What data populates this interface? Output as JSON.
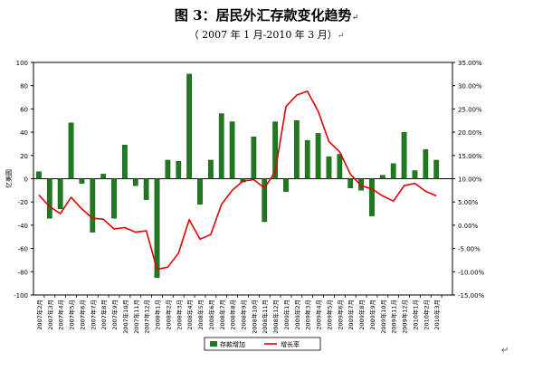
{
  "header": {
    "title": "图 3：居民外汇存款变化趋势",
    "subtitle": "（ 2007 年 1 月-2010 年 3 月）",
    "para_mark": "↵"
  },
  "chart_data": {
    "type": "bar+line",
    "title": "图 3：居民外汇存款变化趋势",
    "subtitle": "（ 2007 年 1 月-2010 年 3 月）",
    "ylabel": "亿美圆",
    "y2label": "",
    "ylim": [
      -100,
      100
    ],
    "y2lim": [
      -15,
      35
    ],
    "yticks": [
      -100,
      -80,
      -60,
      -40,
      -20,
      0,
      20,
      40,
      60,
      80,
      100
    ],
    "y2ticks": [
      "-15.00%",
      "-10.00%",
      "-5.00%",
      "0.00%",
      "5.00%",
      "10.00%",
      "15.00%",
      "20.00%",
      "25.00%",
      "30.00%",
      "35.00%"
    ],
    "y2tick_values": [
      -15,
      -10,
      -5,
      0,
      5,
      10,
      15,
      20,
      25,
      30,
      35
    ],
    "categories": [
      "2007年1月",
      "2007年2月",
      "2007年3月",
      "2007年4月",
      "2007年5月",
      "2007年6月",
      "2007年7月",
      "2007年8月",
      "2007年9月",
      "2007年10月",
      "2007年11月",
      "2007年12月",
      "2008年1月",
      "2008年2月",
      "2008年3月",
      "2008年4月",
      "2008年5月",
      "2008年6月",
      "2008年7月",
      "2008年8月",
      "2008年9月",
      "2008年10月",
      "2008年11月",
      "2008年12月",
      "2009年1月",
      "2009年2月",
      "2009年3月",
      "2009年4月",
      "2009年5月",
      "2009年6月",
      "2009年7月",
      "2009年8月",
      "2009年9月",
      "2009年10月",
      "2009年11月",
      "2009年12月",
      "2010年1月",
      "2010年2月",
      "2010年3月"
    ],
    "tick_labels": [
      "2007年2月",
      "2007年3月",
      "2007年4月",
      "2007年5月",
      "2007年6月",
      "2007年7月",
      "2007年8月",
      "2007年9月",
      "2007年10月",
      "2007年11月",
      "2007年12月",
      "2008年1月",
      "2008年2月",
      "2008年3月",
      "2008年4月",
      "2008年5月",
      "2008年6月",
      "2008年7月",
      "2008年8月",
      "2008年9月",
      "2008年10月",
      "2008年11月",
      "2008年12月",
      "2009年1月",
      "2009年2月",
      "2009年3月",
      "2009年4月",
      "2009年5月",
      "2009年6月",
      "2009年7月",
      "2009年8月",
      "2009年9月",
      "2009年10月",
      "2009年11月",
      "2009年12月",
      "2010年1月",
      "2010年2月",
      "2010年3月"
    ],
    "series": [
      {
        "name": "存款增加",
        "type": "bar",
        "axis": "left",
        "color": "#1f7a1f",
        "values": [
          6,
          -34,
          -26,
          48,
          -4,
          -46,
          4,
          -34,
          29,
          -6,
          -18,
          -85,
          16,
          15,
          90,
          -22,
          16,
          56,
          49,
          -3,
          36,
          -37,
          49,
          -11,
          50,
          33,
          39,
          19,
          21,
          -8,
          -10,
          -32,
          3,
          13,
          40,
          7,
          25,
          16,
          null
        ]
      },
      {
        "name": "增长率",
        "type": "line",
        "axis": "right",
        "color": "#e00000",
        "values": [
          6.5,
          4.0,
          2.5,
          6.0,
          3.5,
          1.5,
          1.3,
          -0.8,
          -0.5,
          -1.5,
          -1.2,
          -9.5,
          -9.0,
          -6.0,
          1.2,
          -3.0,
          -2.0,
          4.5,
          7.5,
          9.5,
          9.8,
          8.0,
          11.5,
          25.5,
          28.0,
          28.8,
          24.5,
          18.0,
          15.8,
          11.0,
          8.5,
          7.8,
          6.3,
          5.2,
          8.5,
          9.0,
          7.3,
          6.3,
          null
        ]
      }
    ],
    "legend": [
      "存款增加",
      "增长率"
    ],
    "legend_position": "bottom",
    "grid": false
  }
}
